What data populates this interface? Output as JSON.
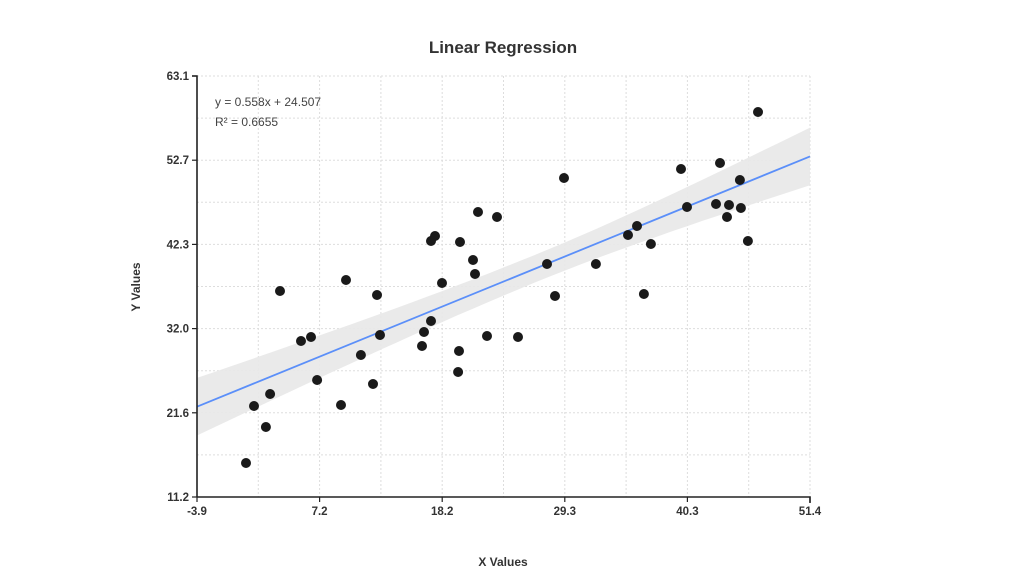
{
  "chart_data": {
    "type": "scatter",
    "title": "Linear Regression",
    "xlabel": "X Values",
    "ylabel": "Y Values",
    "xlim": [
      -3.9,
      51.4
    ],
    "ylim": [
      11.2,
      63.1
    ],
    "x_ticks": [
      "-3.9",
      "7.2",
      "18.2",
      "29.3",
      "40.3",
      "51.4"
    ],
    "y_ticks": [
      "11.2",
      "21.6",
      "32.0",
      "42.3",
      "52.7",
      "63.1"
    ],
    "grid": true,
    "annotations": {
      "equation": "y = 0.558x + 24.507",
      "r_squared": "R² = 0.6655"
    },
    "regression": {
      "slope": 0.558,
      "intercept": 24.507,
      "r2": 0.6655,
      "color": "#5b8ff9",
      "confidence_band_color": "#e8e8e8",
      "band_start": {
        "x": -3.9,
        "lower": 18.8,
        "upper": 25.9
      },
      "band_end": {
        "x": 51.4,
        "lower": 48.2,
        "upper": 55.3
      }
    },
    "point_color": "#1a1a1a",
    "series": [
      {
        "name": "data",
        "x": [
          0.52,
          1.24,
          2.69,
          2.32,
          3.59,
          5.48,
          6.38,
          6.93,
          9.54,
          9.09,
          10.89,
          11.98,
          12.34,
          12.61,
          16.4,
          16.58,
          17.21,
          17.21,
          17.57,
          18.2,
          19.74,
          19.65,
          19.83,
          21.0,
          21.18,
          21.45,
          22.26,
          23.16,
          25.06,
          27.67,
          28.4,
          29.21,
          32.09,
          34.98,
          35.79,
          36.42,
          37.05,
          39.76,
          40.3,
          42.92,
          43.28,
          43.91,
          44.09,
          45.08,
          45.17,
          45.8,
          46.71
        ],
        "y": [
          15.39,
          22.42,
          23.9,
          19.83,
          36.6,
          30.43,
          30.92,
          25.62,
          37.95,
          22.54,
          28.71,
          25.13,
          36.1,
          31.17,
          29.82,
          31.54,
          32.9,
          42.76,
          43.38,
          37.58,
          29.2,
          26.61,
          42.64,
          40.42,
          38.69,
          46.33,
          31.05,
          45.72,
          30.92,
          39.92,
          35.98,
          50.53,
          39.92,
          43.5,
          44.61,
          36.23,
          42.39,
          51.64,
          46.95,
          47.32,
          52.38,
          45.72,
          47.2,
          50.28,
          46.83,
          42.76,
          58.66
        ]
      }
    ]
  }
}
